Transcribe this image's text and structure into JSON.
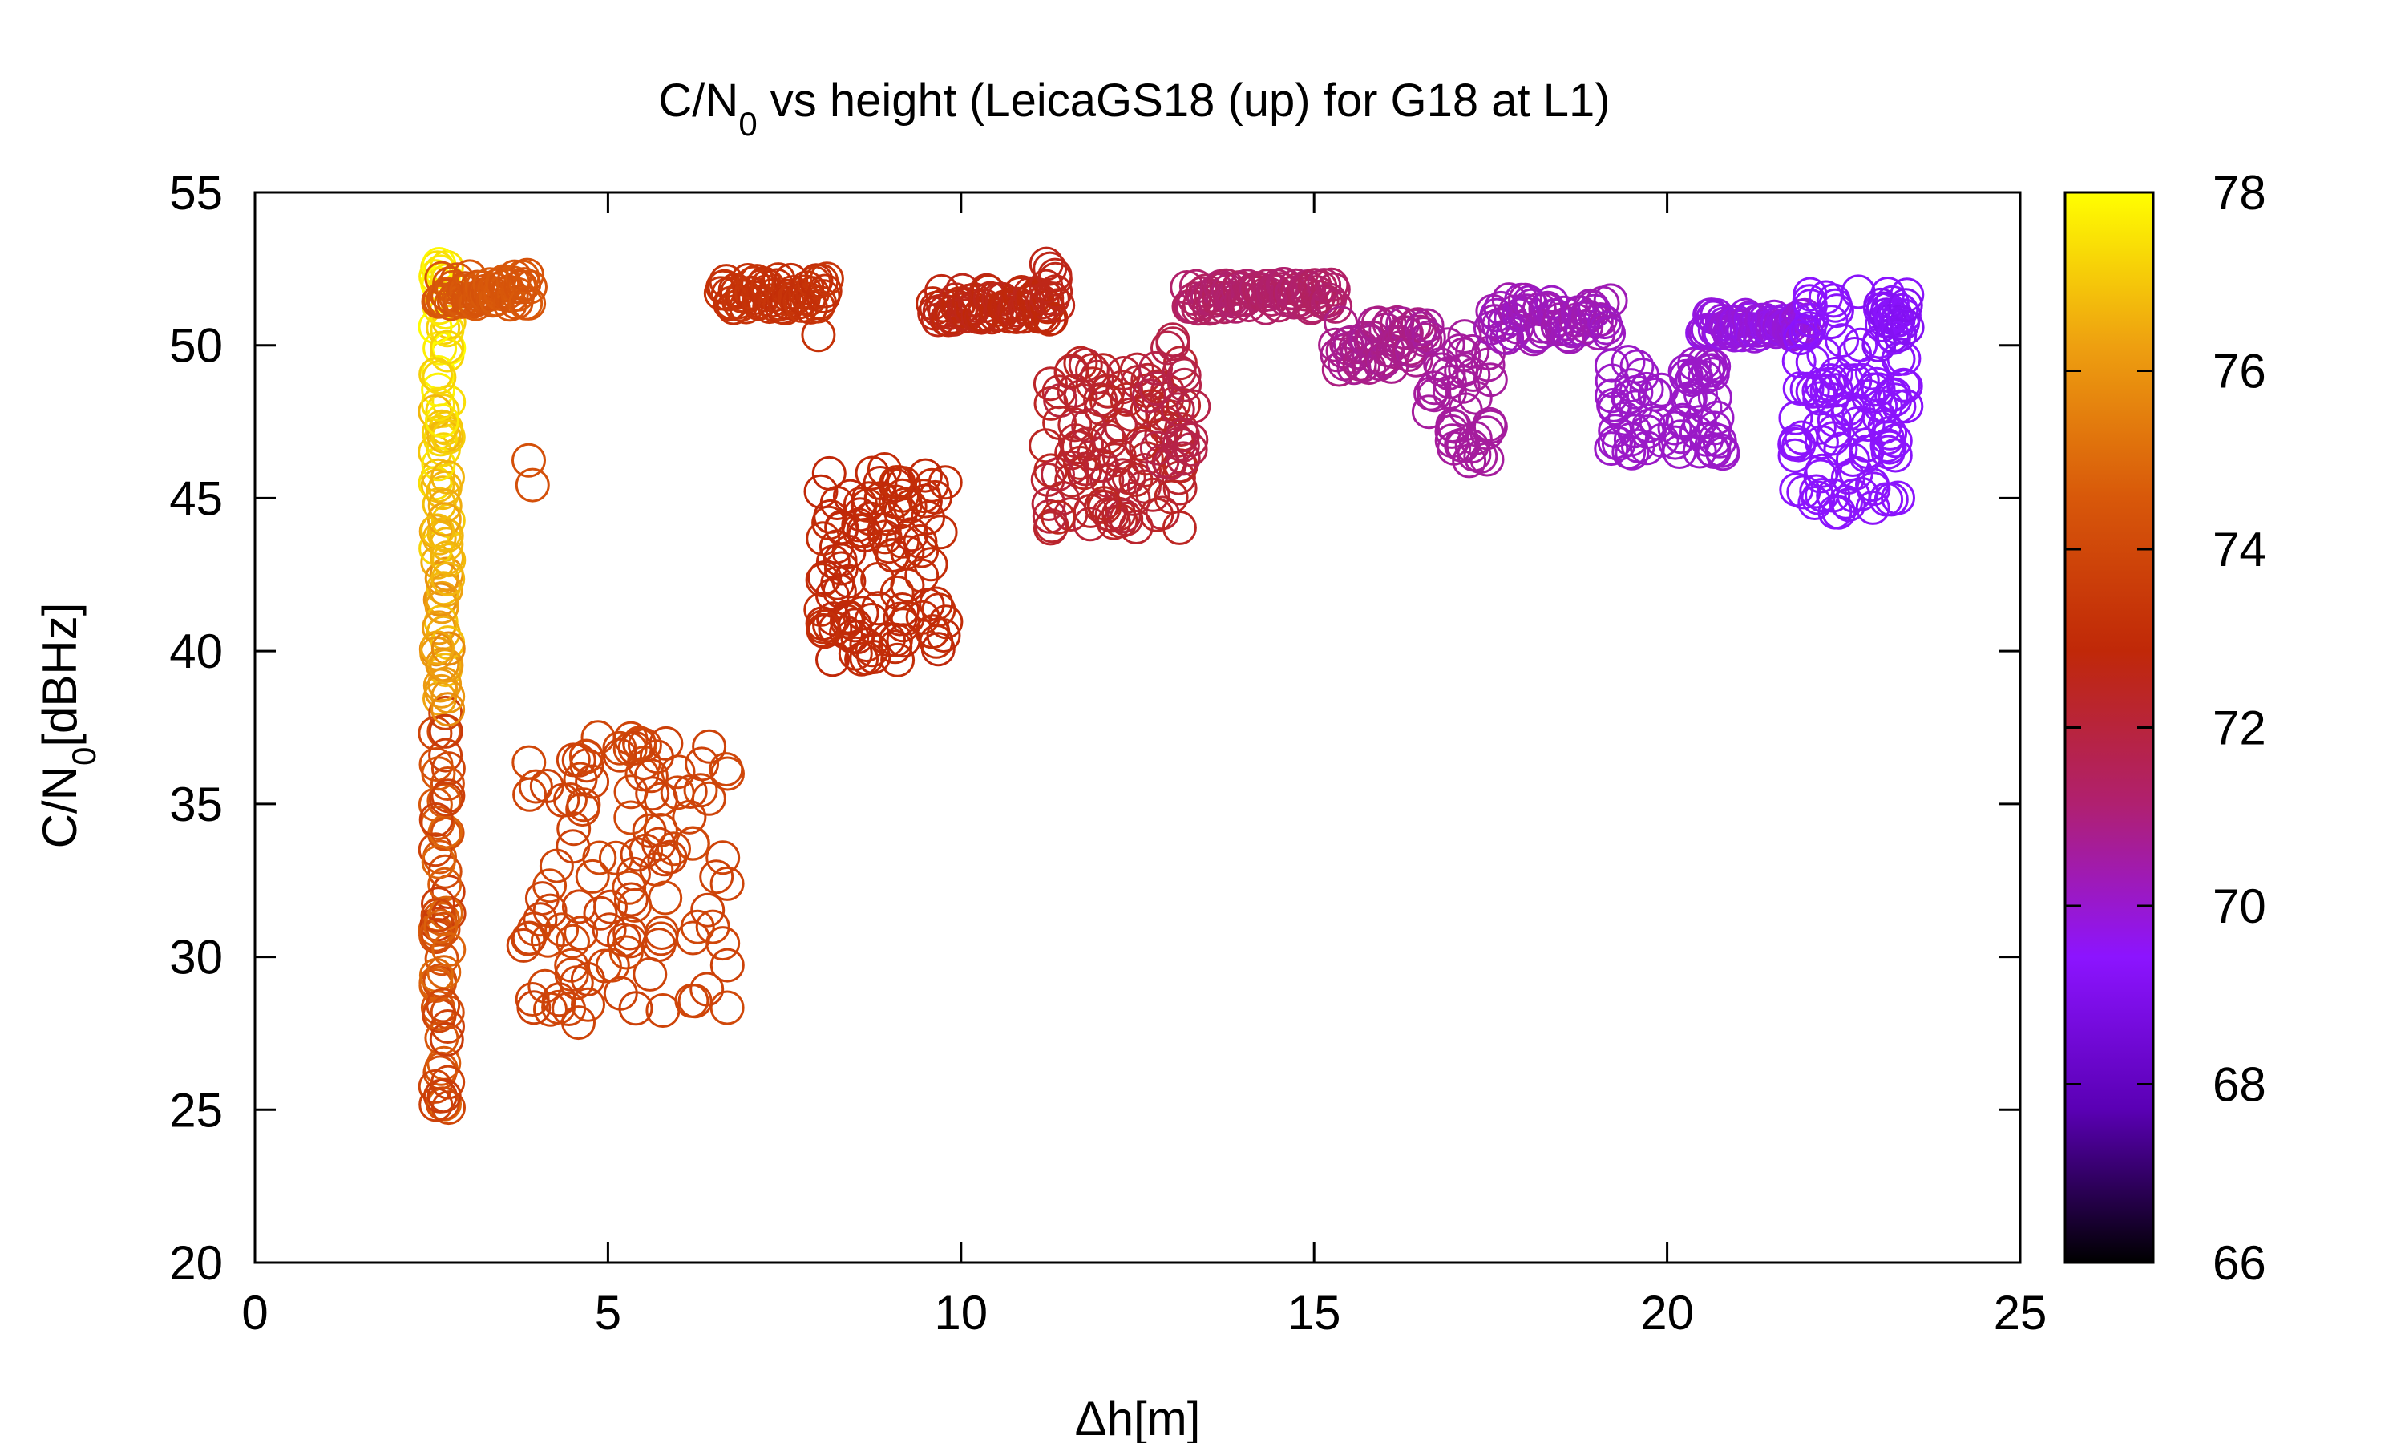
{
  "chart_data": {
    "type": "scatter",
    "title": {
      "main": "C/N",
      "sub": "0",
      "rest": " vs height (LeicaGS18 (up) for G18 at L1)"
    },
    "xlabel": "Δh[m]",
    "ylabel": {
      "main": "C/N",
      "sub": "0",
      "rest": "[dBHz]"
    },
    "xlim": [
      0,
      25
    ],
    "ylim": [
      20,
      55
    ],
    "xticks": [
      0,
      5,
      10,
      15,
      20,
      25
    ],
    "yticks": [
      20,
      25,
      30,
      35,
      40,
      45,
      50,
      55
    ],
    "colorbar": {
      "range": [
        66,
        78
      ],
      "ticks": [
        66,
        68,
        70,
        72,
        74,
        76,
        78
      ],
      "palette": [
        "#000000",
        "#5a00b4",
        "#8c14ff",
        "#b02070",
        "#c02808",
        "#d8580a",
        "#eea010",
        "#ffff00"
      ]
    },
    "marker": "open-circle",
    "grid": false,
    "legend": "none",
    "clusters": [
      {
        "x": [
          2.55,
          2.75
        ],
        "y": [
          24.7,
          53
        ],
        "c": [
          74.5,
          77.8
        ],
        "n": 150,
        "mode": "column"
      },
      {
        "x": [
          2.6,
          3.9
        ],
        "y": [
          51.3,
          52.3
        ],
        "c": [
          74.5,
          74.5
        ],
        "n": 60,
        "mode": "band"
      },
      {
        "x": [
          3.85,
          3.95
        ],
        "y": [
          44.7,
          47.7
        ],
        "c": [
          74.3,
          74.3
        ],
        "n": 2,
        "mode": "scatter"
      },
      {
        "x": [
          3.8,
          6.7
        ],
        "y": [
          27.8,
          37.2
        ],
        "c": [
          73.7,
          74.0
        ],
        "n": 120,
        "mode": "scatter"
      },
      {
        "x": [
          6.6,
          8.1
        ],
        "y": [
          51.2,
          52.2
        ],
        "c": [
          73.2,
          73.2
        ],
        "n": 60,
        "mode": "band"
      },
      {
        "x": [
          7.95,
          8.05
        ],
        "y": [
          50.2,
          50.4
        ],
        "c": [
          73.2,
          73.2
        ],
        "n": 1,
        "mode": "scatter"
      },
      {
        "x": [
          8.0,
          9.8
        ],
        "y": [
          39.7,
          46.0
        ],
        "c": [
          72.8,
          73.1
        ],
        "n": 110,
        "mode": "scatter"
      },
      {
        "x": [
          9.6,
          11.3
        ],
        "y": [
          50.8,
          51.8
        ],
        "c": [
          72.7,
          72.7
        ],
        "n": 70,
        "mode": "band"
      },
      {
        "x": [
          11.2,
          11.4
        ],
        "y": [
          51.2,
          52.7
        ],
        "c": [
          72.6,
          72.6
        ],
        "n": 8,
        "mode": "scatter"
      },
      {
        "x": [
          11.2,
          13.2
        ],
        "y": [
          44.0,
          49.5
        ],
        "c": [
          72.0,
          72.5
        ],
        "n": 110,
        "mode": "scatter"
      },
      {
        "x": [
          12.6,
          13.3
        ],
        "y": [
          46.0,
          50.5
        ],
        "c": [
          71.8,
          71.8
        ],
        "n": 20,
        "mode": "scatter"
      },
      {
        "x": [
          13.2,
          15.3
        ],
        "y": [
          51.2,
          52.0
        ],
        "c": [
          71.3,
          71.3
        ],
        "n": 80,
        "mode": "band"
      },
      {
        "x": [
          15.3,
          16.6
        ],
        "y": [
          49.2,
          50.8
        ],
        "c": [
          70.8,
          70.8
        ],
        "n": 50,
        "mode": "band"
      },
      {
        "x": [
          16.6,
          17.5
        ],
        "y": [
          46.2,
          50.5
        ],
        "c": [
          70.6,
          70.6
        ],
        "n": 40,
        "mode": "scatter"
      },
      {
        "x": [
          17.5,
          19.2
        ],
        "y": [
          50.2,
          51.5
        ],
        "c": [
          70.3,
          70.3
        ],
        "n": 60,
        "mode": "band"
      },
      {
        "x": [
          19.2,
          20.8
        ],
        "y": [
          46.4,
          49.5
        ],
        "c": [
          70.1,
          70.1
        ],
        "n": 70,
        "mode": "scatter"
      },
      {
        "x": [
          20.5,
          22.0
        ],
        "y": [
          50.3,
          51.0
        ],
        "c": [
          69.8,
          69.8
        ],
        "n": 60,
        "mode": "band"
      },
      {
        "x": [
          21.8,
          23.4
        ],
        "y": [
          44.5,
          51.8
        ],
        "c": [
          69.3,
          69.5
        ],
        "n": 110,
        "mode": "scatter"
      },
      {
        "x": [
          23.0,
          23.4
        ],
        "y": [
          50.0,
          51.5
        ],
        "c": [
          69.2,
          69.2
        ],
        "n": 20,
        "mode": "band"
      }
    ]
  }
}
